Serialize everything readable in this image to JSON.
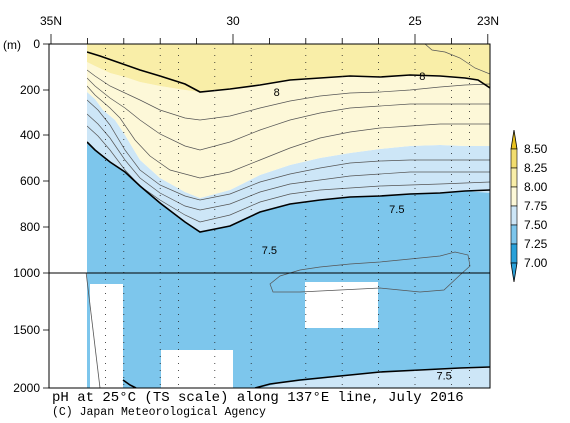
{
  "chart_data": {
    "type": "contour",
    "title": "pH at 25°C (TS scale) along 137°E line, July 2016",
    "credit": "(C) Japan Meteorological Agency",
    "x_axis": {
      "ticks": [
        "35N",
        "30",
        "25",
        "23N"
      ],
      "range_lat": [
        35,
        23
      ]
    },
    "y_axis": {
      "label": "(m)",
      "ticks": [
        "0",
        "200",
        "400",
        "600",
        "800",
        "1000",
        "1500",
        "2000"
      ],
      "upper_range_m": [
        0,
        1000
      ],
      "lower_range_m": [
        1000,
        2000
      ]
    },
    "colorbar": {
      "levels": [
        "8.50",
        "8.25",
        "8.00",
        "7.75",
        "7.50",
        "7.25",
        "7.00"
      ],
      "colors": [
        "#e8c11f",
        "#f2dd6e",
        "#f9eea8",
        "#fdf8d8",
        "#cde6f7",
        "#7dc6ec",
        "#2aa1d9"
      ]
    },
    "contour_labels": [
      {
        "text": "8",
        "lat": 28.8,
        "depth_m": 210
      },
      {
        "text": "8",
        "lat": 24.8,
        "depth_m": 140
      },
      {
        "text": "7.5",
        "lat": 25.5,
        "depth_m": 720
      },
      {
        "text": "7.5",
        "lat": 29.0,
        "depth_m": 900
      },
      {
        "text": "7.5",
        "lat": 24.2,
        "depth_m": 1890
      }
    ],
    "station_lats": [
      33.5,
      33.0,
      32.0,
      31.5,
      30.5,
      29.5,
      28.0,
      27.0,
      26.0,
      25.0,
      24.0,
      23.5
    ]
  }
}
